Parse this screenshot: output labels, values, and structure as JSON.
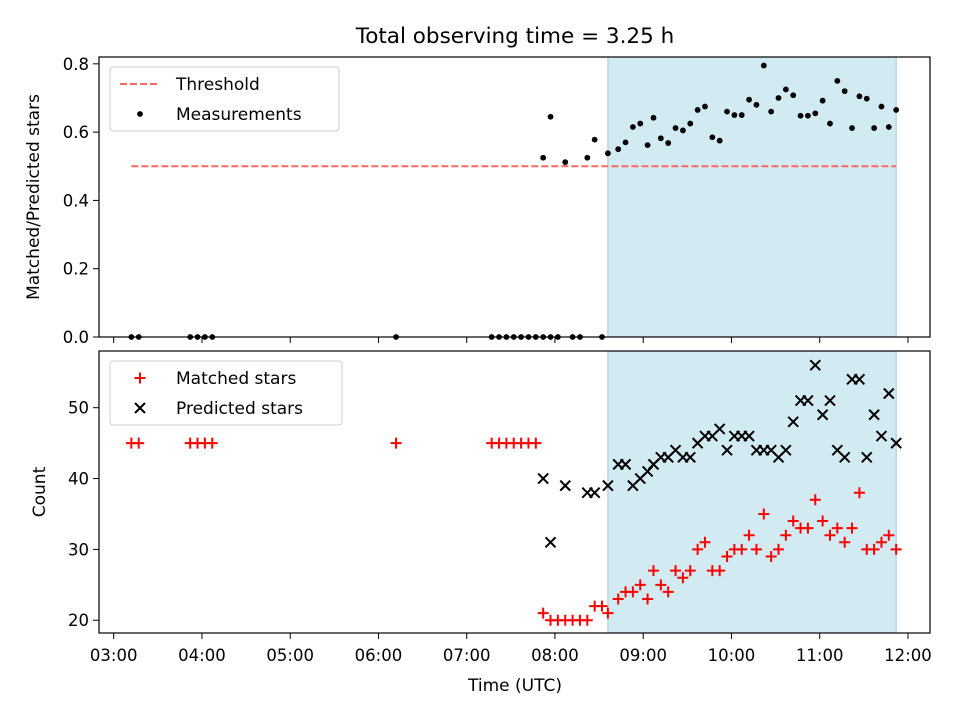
{
  "figure": {
    "title": "Total observing time = 3.25 h",
    "xlabel": "Time (UTC)"
  },
  "chart_data": [
    {
      "type": "scatter",
      "panel": "top",
      "ylabel": "Matched/Predicted stars",
      "xlim": [
        "02:50",
        "12:15"
      ],
      "ylim": [
        0,
        0.82
      ],
      "yticks": [
        "0.0",
        "0.2",
        "0.4",
        "0.6",
        "0.8"
      ],
      "xticks": [
        "03:00",
        "04:00",
        "05:00",
        "06:00",
        "07:00",
        "08:00",
        "09:00",
        "10:00",
        "11:00",
        "12:00"
      ],
      "grid": false,
      "legend": {
        "placement": "upper left",
        "entries": [
          "Threshold",
          "Measurements"
        ]
      },
      "observing_window": {
        "start": "08:36",
        "end": "11:52",
        "color": "#add8e6"
      },
      "threshold": {
        "name": "Threshold",
        "value": 0.5,
        "x_start": "03:12",
        "x_end": "11:52",
        "color": "#ff6666",
        "style": "dashed"
      },
      "series": [
        {
          "name": "Measurements",
          "color": "#000000",
          "marker": "dot",
          "points": [
            [
              "03:12",
              0.0
            ],
            [
              "03:17",
              0.0
            ],
            [
              "03:52",
              0.0
            ],
            [
              "03:57",
              0.0
            ],
            [
              "04:02",
              0.0
            ],
            [
              "04:07",
              0.0
            ],
            [
              "06:12",
              0.0
            ],
            [
              "07:17",
              0.0
            ],
            [
              "07:22",
              0.0
            ],
            [
              "07:27",
              0.0
            ],
            [
              "07:32",
              0.0
            ],
            [
              "07:37",
              0.0
            ],
            [
              "07:42",
              0.0
            ],
            [
              "07:47",
              0.0
            ],
            [
              "07:52",
              0.0
            ],
            [
              "07:57",
              0.0
            ],
            [
              "08:02",
              0.0
            ],
            [
              "08:12",
              0.0
            ],
            [
              "08:17",
              0.0
            ],
            [
              "08:32",
              0.0
            ],
            [
              "07:52",
              0.525
            ],
            [
              "07:57",
              0.645
            ],
            [
              "08:07",
              0.512
            ],
            [
              "08:22",
              0.525
            ],
            [
              "08:27",
              0.578
            ],
            [
              "08:36",
              0.538
            ],
            [
              "08:43",
              0.55
            ],
            [
              "08:48",
              0.57
            ],
            [
              "08:53",
              0.615
            ],
            [
              "08:58",
              0.625
            ],
            [
              "09:03",
              0.562
            ],
            [
              "09:07",
              0.642
            ],
            [
              "09:12",
              0.582
            ],
            [
              "09:17",
              0.568
            ],
            [
              "09:22",
              0.612
            ],
            [
              "09:27",
              0.605
            ],
            [
              "09:32",
              0.625
            ],
            [
              "09:37",
              0.665
            ],
            [
              "09:42",
              0.675
            ],
            [
              "09:47",
              0.585
            ],
            [
              "09:52",
              0.575
            ],
            [
              "09:57",
              0.66
            ],
            [
              "10:02",
              0.65
            ],
            [
              "10:07",
              0.65
            ],
            [
              "10:12",
              0.695
            ],
            [
              "10:17",
              0.68
            ],
            [
              "10:22",
              0.795
            ],
            [
              "10:27",
              0.66
            ],
            [
              "10:32",
              0.7
            ],
            [
              "10:37",
              0.725
            ],
            [
              "10:42",
              0.708
            ],
            [
              "10:47",
              0.648
            ],
            [
              "10:52",
              0.648
            ],
            [
              "10:57",
              0.655
            ],
            [
              "11:02",
              0.692
            ],
            [
              "11:07",
              0.625
            ],
            [
              "11:12",
              0.75
            ],
            [
              "11:17",
              0.72
            ],
            [
              "11:22",
              0.612
            ],
            [
              "11:27",
              0.705
            ],
            [
              "11:32",
              0.698
            ],
            [
              "11:37",
              0.612
            ],
            [
              "11:42",
              0.675
            ],
            [
              "11:47",
              0.615
            ],
            [
              "11:52",
              0.665
            ]
          ]
        }
      ]
    },
    {
      "type": "scatter",
      "panel": "bottom",
      "ylabel": "Count",
      "xlim": [
        "02:50",
        "12:15"
      ],
      "ylim": [
        18.2,
        58.0
      ],
      "yticks": [
        "20",
        "30",
        "40",
        "50"
      ],
      "xticks": [
        "03:00",
        "04:00",
        "05:00",
        "06:00",
        "07:00",
        "08:00",
        "09:00",
        "10:00",
        "11:00",
        "12:00"
      ],
      "grid": false,
      "legend": {
        "placement": "upper left",
        "entries": [
          "Matched stars",
          "Predicted stars"
        ]
      },
      "observing_window": {
        "start": "08:36",
        "end": "11:52",
        "color": "#add8e6"
      },
      "series": [
        {
          "name": "Matched stars",
          "color": "#ff0000",
          "marker": "plus",
          "points": [
            [
              "03:12",
              45
            ],
            [
              "03:17",
              45
            ],
            [
              "03:52",
              45
            ],
            [
              "03:57",
              45
            ],
            [
              "04:02",
              45
            ],
            [
              "04:07",
              45
            ],
            [
              "06:12",
              45
            ],
            [
              "07:17",
              45
            ],
            [
              "07:22",
              45
            ],
            [
              "07:27",
              45
            ],
            [
              "07:32",
              45
            ],
            [
              "07:37",
              45
            ],
            [
              "07:42",
              45
            ],
            [
              "07:47",
              45
            ],
            [
              "07:52",
              21
            ],
            [
              "07:57",
              20
            ],
            [
              "08:02",
              20
            ],
            [
              "08:07",
              20
            ],
            [
              "08:12",
              20
            ],
            [
              "08:17",
              20
            ],
            [
              "08:22",
              20
            ],
            [
              "08:27",
              22
            ],
            [
              "08:32",
              22
            ],
            [
              "08:36",
              21
            ],
            [
              "08:43",
              23
            ],
            [
              "08:48",
              24
            ],
            [
              "08:53",
              24
            ],
            [
              "08:58",
              25
            ],
            [
              "09:03",
              23
            ],
            [
              "09:07",
              27
            ],
            [
              "09:12",
              25
            ],
            [
              "09:17",
              24
            ],
            [
              "09:22",
              27
            ],
            [
              "09:27",
              26
            ],
            [
              "09:32",
              27
            ],
            [
              "09:37",
              30
            ],
            [
              "09:42",
              31
            ],
            [
              "09:47",
              27
            ],
            [
              "09:52",
              27
            ],
            [
              "09:57",
              29
            ],
            [
              "10:02",
              30
            ],
            [
              "10:07",
              30
            ],
            [
              "10:12",
              32
            ],
            [
              "10:17",
              30
            ],
            [
              "10:22",
              35
            ],
            [
              "10:27",
              29
            ],
            [
              "10:32",
              30
            ],
            [
              "10:37",
              32
            ],
            [
              "10:42",
              34
            ],
            [
              "10:47",
              33
            ],
            [
              "10:52",
              33
            ],
            [
              "10:57",
              37
            ],
            [
              "11:02",
              34
            ],
            [
              "11:07",
              32
            ],
            [
              "11:12",
              33
            ],
            [
              "11:17",
              31
            ],
            [
              "11:22",
              33
            ],
            [
              "11:27",
              38
            ],
            [
              "11:32",
              30
            ],
            [
              "11:37",
              30
            ],
            [
              "11:42",
              31
            ],
            [
              "11:47",
              32
            ],
            [
              "11:52",
              30
            ]
          ]
        },
        {
          "name": "Predicted stars",
          "color": "#000000",
          "marker": "x",
          "points": [
            [
              "07:52",
              40
            ],
            [
              "07:57",
              31
            ],
            [
              "08:07",
              39
            ],
            [
              "08:22",
              38
            ],
            [
              "08:27",
              38
            ],
            [
              "08:36",
              39
            ],
            [
              "08:43",
              42
            ],
            [
              "08:48",
              42
            ],
            [
              "08:53",
              39
            ],
            [
              "08:58",
              40
            ],
            [
              "09:03",
              41
            ],
            [
              "09:07",
              42
            ],
            [
              "09:12",
              43
            ],
            [
              "09:17",
              43
            ],
            [
              "09:22",
              44
            ],
            [
              "09:27",
              43
            ],
            [
              "09:32",
              43
            ],
            [
              "09:37",
              45
            ],
            [
              "09:42",
              46
            ],
            [
              "09:47",
              46
            ],
            [
              "09:52",
              47
            ],
            [
              "09:57",
              44
            ],
            [
              "10:02",
              46
            ],
            [
              "10:07",
              46
            ],
            [
              "10:12",
              46
            ],
            [
              "10:17",
              44
            ],
            [
              "10:22",
              44
            ],
            [
              "10:27",
              44
            ],
            [
              "10:32",
              43
            ],
            [
              "10:37",
              44
            ],
            [
              "10:42",
              48
            ],
            [
              "10:47",
              51
            ],
            [
              "10:52",
              51
            ],
            [
              "10:57",
              56
            ],
            [
              "11:02",
              49
            ],
            [
              "11:07",
              51
            ],
            [
              "11:12",
              44
            ],
            [
              "11:17",
              43
            ],
            [
              "11:22",
              54
            ],
            [
              "11:27",
              54
            ],
            [
              "11:32",
              43
            ],
            [
              "11:37",
              49
            ],
            [
              "11:42",
              46
            ],
            [
              "11:47",
              52
            ],
            [
              "11:52",
              45
            ]
          ]
        }
      ]
    }
  ]
}
